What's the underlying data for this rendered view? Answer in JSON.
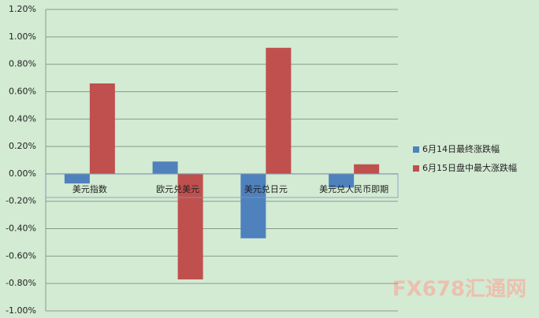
{
  "chart_data": {
    "type": "bar",
    "categories": [
      "美元指数",
      "欧元兑美元",
      "美元兑日元",
      "美元兑人民币即期"
    ],
    "series": [
      {
        "name": "6月14日最终涨跌幅",
        "color": "#4f81bd",
        "values": [
          -0.07,
          0.09,
          -0.47,
          -0.1
        ]
      },
      {
        "name": "6月15日盘中最大涨跌幅",
        "color": "#c0504d",
        "values": [
          0.66,
          -0.77,
          0.92,
          0.07
        ]
      }
    ],
    "ylim": [
      -1.0,
      1.2
    ],
    "yticks": [
      {
        "value": -1.0,
        "label": "-1.00%"
      },
      {
        "value": -0.8,
        "label": "-0.80%"
      },
      {
        "value": -0.6,
        "label": "-0.60%"
      },
      {
        "value": -0.4,
        "label": "-0.40%"
      },
      {
        "value": -0.2,
        "label": "-0.20%"
      },
      {
        "value": 0,
        "label": "0.00%"
      },
      {
        "value": 0.2,
        "label": "0.20%"
      },
      {
        "value": 0.4,
        "label": "0.40%"
      },
      {
        "value": 0.6,
        "label": "0.60%"
      },
      {
        "value": 0.8,
        "label": "0.80%"
      },
      {
        "value": 1.0,
        "label": "1.00%"
      },
      {
        "value": 1.2,
        "label": "1.20%"
      }
    ],
    "grid": true,
    "legend": "right",
    "watermark": "FX678汇通网"
  }
}
